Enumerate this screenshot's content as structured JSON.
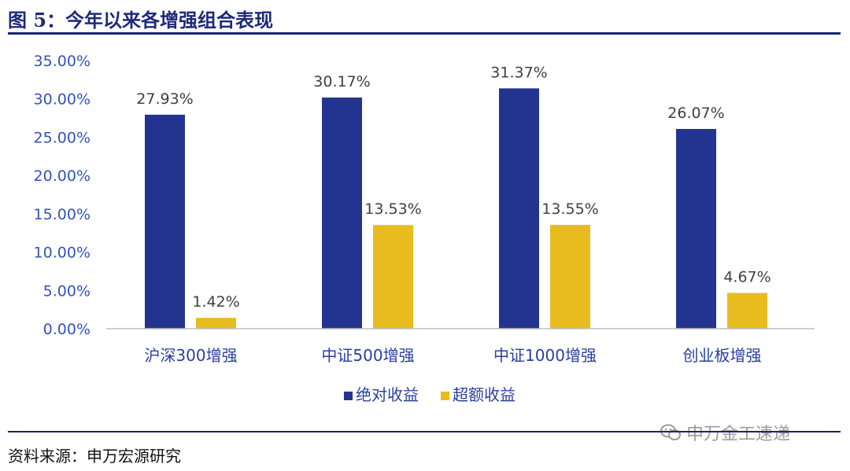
{
  "figure": {
    "title": "图 5：今年以来各增强组合表现",
    "source": "资料来源：申万宏源研究",
    "watermark": "申万金工速递"
  },
  "colors": {
    "series1": "#233490",
    "series2": "#e8bc1e",
    "axis": "#bfbfbf",
    "rule": "#1a2472"
  },
  "chart_data": {
    "type": "bar",
    "categories": [
      "沪深300增强",
      "中证500增强",
      "中证1000增强",
      "创业板增强"
    ],
    "series": [
      {
        "name": "绝对收益",
        "values": [
          27.93,
          30.17,
          31.37,
          26.07
        ],
        "labels": [
          "27.93%",
          "30.17%",
          "31.37%",
          "26.07%"
        ]
      },
      {
        "name": "超额收益",
        "values": [
          1.42,
          13.53,
          13.55,
          4.67
        ],
        "labels": [
          "1.42%",
          "13.53%",
          "13.55%",
          "4.67%"
        ]
      }
    ],
    "ylim": [
      0,
      35
    ],
    "yticks": [
      "0.00%",
      "5.00%",
      "10.00%",
      "15.00%",
      "20.00%",
      "25.00%",
      "30.00%",
      "35.00%"
    ],
    "ytick_values": [
      0,
      5,
      10,
      15,
      20,
      25,
      30,
      35
    ],
    "legend_position": "bottom",
    "grid": false
  }
}
